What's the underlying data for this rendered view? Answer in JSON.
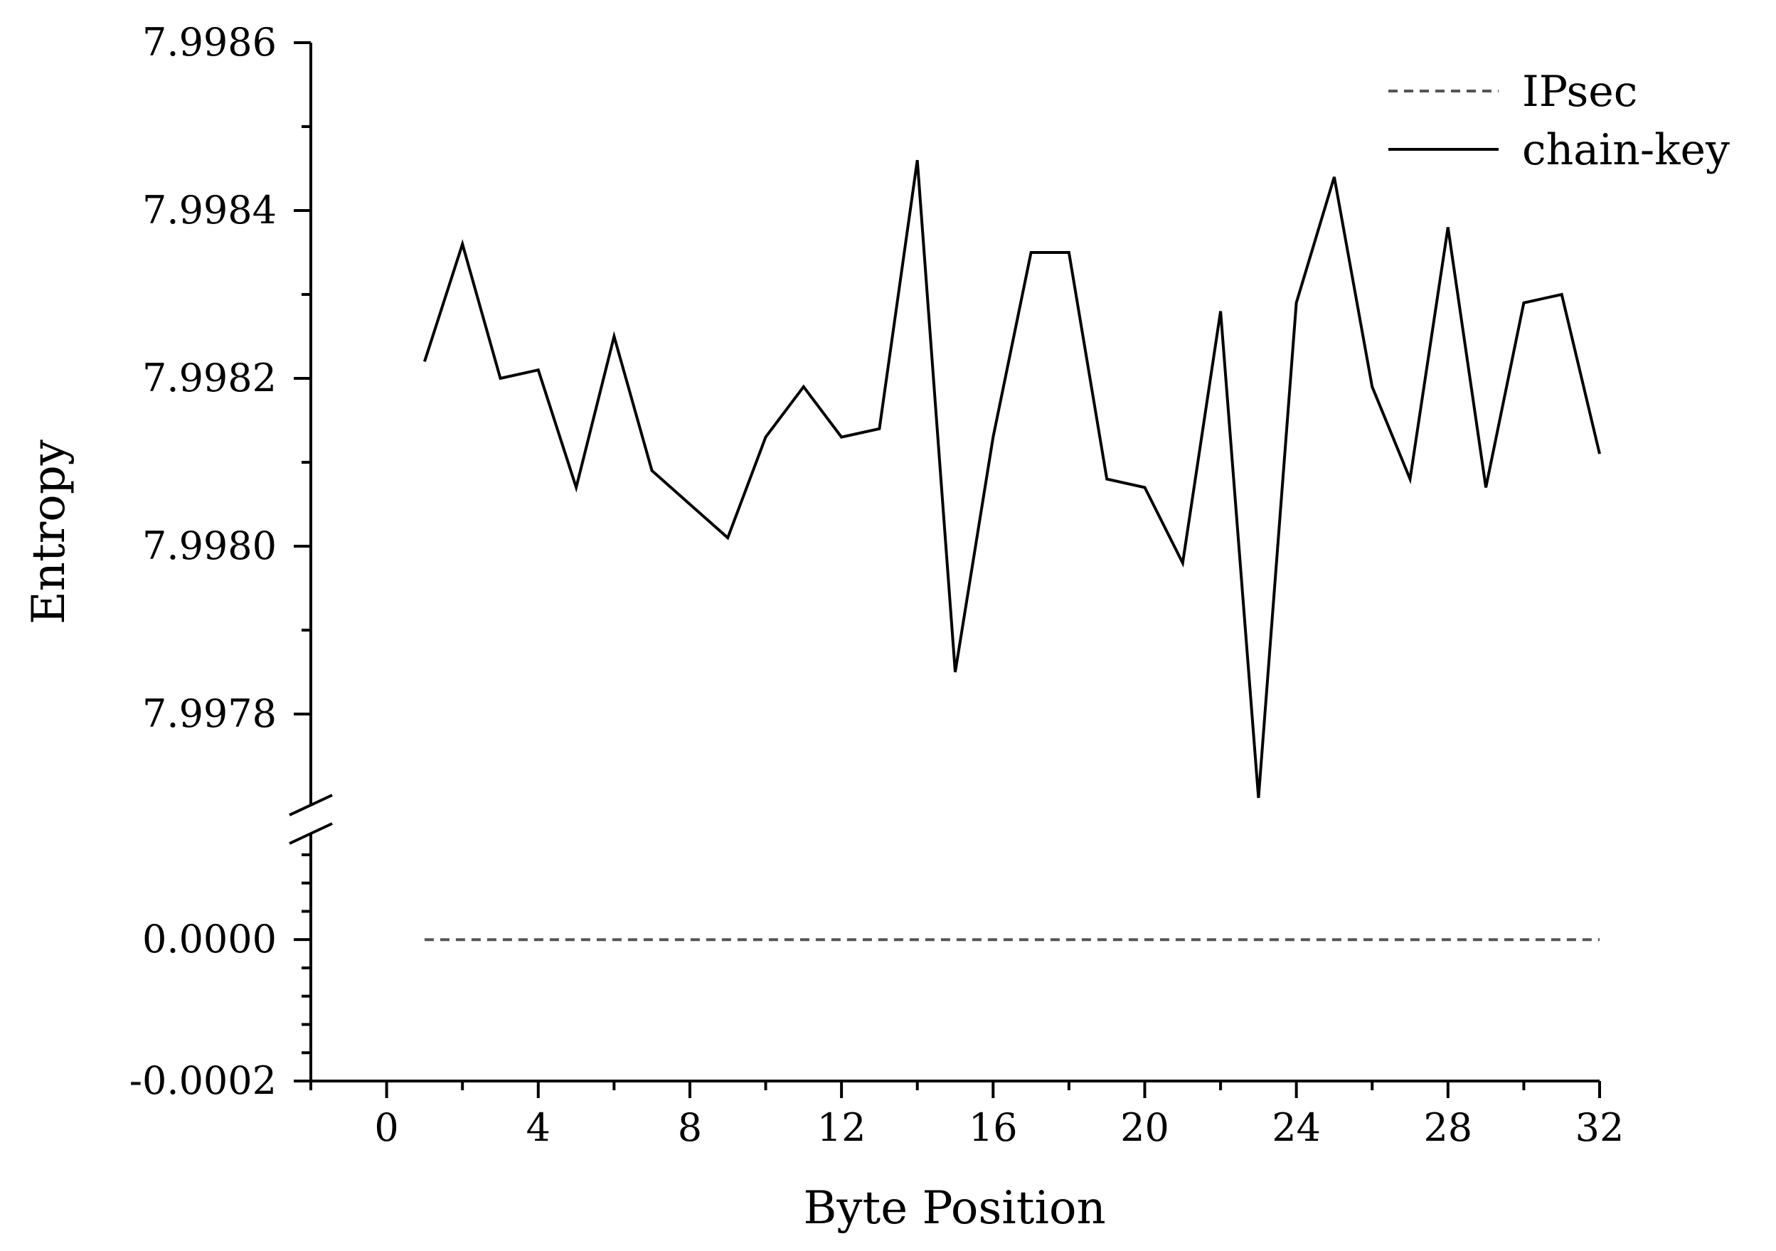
{
  "chart_data": {
    "type": "line",
    "xlabel": "Byte Position",
    "ylabel": "Entropy",
    "x_ticks": [
      0,
      4,
      8,
      12,
      16,
      20,
      24,
      28,
      32
    ],
    "x_tick_labels": [
      "0",
      "4",
      "8",
      "12",
      "16",
      "20",
      "24",
      "28",
      "32"
    ],
    "xlim": [
      -2,
      32
    ],
    "axis_break": true,
    "y_upper": {
      "ylim": [
        7.9977,
        7.9986
      ],
      "ticks": [
        7.9978,
        7.998,
        7.9982,
        7.9984,
        7.9986
      ],
      "tick_labels": [
        "7.9978",
        "7.9980",
        "7.9982",
        "7.9984",
        "7.9986"
      ]
    },
    "y_lower": {
      "ylim": [
        -0.0002,
        0.00014
      ],
      "ticks": [
        -0.0002,
        0.0
      ],
      "tick_labels": [
        "-0.0002",
        "0.0000"
      ]
    },
    "legend_position": "top-right",
    "grid": false,
    "series": [
      {
        "name": "IPsec",
        "style": "dashed",
        "color": "#555555",
        "segment": "lower",
        "x": [
          1,
          32
        ],
        "y": [
          0.0,
          0.0
        ]
      },
      {
        "name": "chain-key",
        "style": "solid",
        "color": "#000000",
        "segment": "upper",
        "x": [
          1,
          2,
          3,
          4,
          5,
          6,
          7,
          8,
          9,
          10,
          11,
          12,
          13,
          14,
          15,
          16,
          17,
          18,
          19,
          20,
          21,
          22,
          23,
          24,
          25,
          26,
          27,
          28,
          29,
          30,
          31,
          32
        ],
        "y": [
          7.99822,
          7.99836,
          7.9982,
          7.99821,
          7.99807,
          7.99825,
          7.99809,
          7.99805,
          7.99801,
          7.99813,
          7.99819,
          7.99813,
          7.99814,
          7.99846,
          7.99785,
          7.99813,
          7.99835,
          7.99835,
          7.99808,
          7.99807,
          7.99798,
          7.99828,
          7.9977,
          7.99829,
          7.99844,
          7.99819,
          7.99808,
          7.99838,
          7.99807,
          7.99829,
          7.9983,
          7.99811
        ]
      }
    ]
  }
}
